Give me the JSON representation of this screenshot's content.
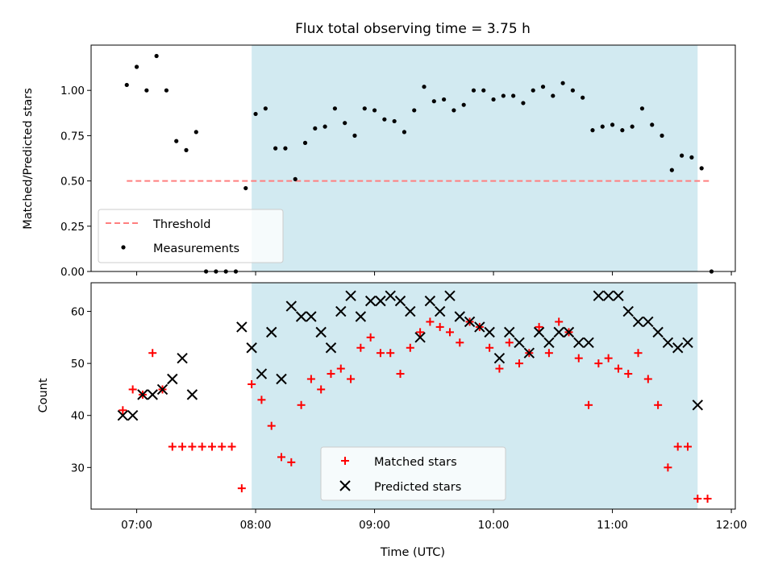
{
  "colors": {
    "shade": "#add8e6",
    "threshold": "#ff7f7f",
    "matched": "#ff0000",
    "predicted": "#000000",
    "measure": "#000000"
  },
  "chart_data": [
    {
      "type": "scatter",
      "title": "Flux total observing time = 3.75 h",
      "ylabel": "Matched/Predicted stars",
      "xlim": [
        "06:37",
        "12:02"
      ],
      "ylim": [
        0,
        1.25
      ],
      "yticks": [
        "0.00",
        "0.25",
        "0.50",
        "0.75",
        "1.00"
      ],
      "shaded_span": [
        "07:58",
        "11:43"
      ],
      "threshold": {
        "name": "Threshold",
        "value": 0.5,
        "x_range": [
          "06:55",
          "11:50"
        ]
      },
      "legend_position": "lower-left",
      "series": [
        {
          "name": "Measurements",
          "points": [
            [
              "06:55",
              1.03
            ],
            [
              "07:00",
              1.13
            ],
            [
              "07:05",
              1.0
            ],
            [
              "07:10",
              1.19
            ],
            [
              "07:15",
              1.0
            ],
            [
              "07:20",
              0.72
            ],
            [
              "07:25",
              0.67
            ],
            [
              "07:30",
              0.77
            ],
            [
              "07:35",
              0.0
            ],
            [
              "07:40",
              0.0
            ],
            [
              "07:45",
              0.0
            ],
            [
              "07:50",
              0.0
            ],
            [
              "07:55",
              0.46
            ],
            [
              "08:00",
              0.87
            ],
            [
              "08:05",
              0.9
            ],
            [
              "08:10",
              0.68
            ],
            [
              "08:15",
              0.68
            ],
            [
              "08:20",
              0.51
            ],
            [
              "08:25",
              0.71
            ],
            [
              "08:30",
              0.79
            ],
            [
              "08:35",
              0.8
            ],
            [
              "08:40",
              0.9
            ],
            [
              "08:45",
              0.82
            ],
            [
              "08:50",
              0.75
            ],
            [
              "08:55",
              0.9
            ],
            [
              "09:00",
              0.89
            ],
            [
              "09:05",
              0.84
            ],
            [
              "09:10",
              0.83
            ],
            [
              "09:15",
              0.77
            ],
            [
              "09:20",
              0.89
            ],
            [
              "09:25",
              1.02
            ],
            [
              "09:30",
              0.94
            ],
            [
              "09:35",
              0.95
            ],
            [
              "09:40",
              0.89
            ],
            [
              "09:45",
              0.92
            ],
            [
              "09:50",
              1.0
            ],
            [
              "09:55",
              1.0
            ],
            [
              "10:00",
              0.95
            ],
            [
              "10:05",
              0.97
            ],
            [
              "10:10",
              0.97
            ],
            [
              "10:15",
              0.93
            ],
            [
              "10:20",
              1.0
            ],
            [
              "10:25",
              1.02
            ],
            [
              "10:30",
              0.97
            ],
            [
              "10:35",
              1.04
            ],
            [
              "10:40",
              1.0
            ],
            [
              "10:45",
              0.96
            ],
            [
              "10:50",
              0.78
            ],
            [
              "10:55",
              0.8
            ],
            [
              "11:00",
              0.81
            ],
            [
              "11:05",
              0.78
            ],
            [
              "11:10",
              0.8
            ],
            [
              "11:15",
              0.9
            ],
            [
              "11:20",
              0.81
            ],
            [
              "11:25",
              0.75
            ],
            [
              "11:30",
              0.56
            ],
            [
              "11:35",
              0.64
            ],
            [
              "11:40",
              0.63
            ],
            [
              "11:45",
              0.57
            ],
            [
              "11:50",
              0.0
            ]
          ]
        }
      ]
    },
    {
      "type": "scatter",
      "xlabel": "Time (UTC)",
      "ylabel": "Count",
      "xlim": [
        "06:37",
        "12:02"
      ],
      "ylim": [
        22,
        65.5
      ],
      "yticks": [
        "30",
        "40",
        "50",
        "60"
      ],
      "xticks": [
        "07:00",
        "08:00",
        "09:00",
        "10:00",
        "11:00",
        "12:00"
      ],
      "shaded_span": [
        "07:58",
        "11:43"
      ],
      "legend_position": "lower-center",
      "series": [
        {
          "name": "Matched stars",
          "points": [
            [
              "06:53",
              41
            ],
            [
              "06:58",
              45
            ],
            [
              "07:03",
              44
            ],
            [
              "07:08",
              52
            ],
            [
              "07:13",
              45
            ],
            [
              "07:18",
              34
            ],
            [
              "07:23",
              34
            ],
            [
              "07:28",
              34
            ],
            [
              "07:33",
              34
            ],
            [
              "07:38",
              34
            ],
            [
              "07:43",
              34
            ],
            [
              "07:48",
              34
            ],
            [
              "07:53",
              26
            ],
            [
              "07:58",
              46
            ],
            [
              "08:03",
              43
            ],
            [
              "08:08",
              38
            ],
            [
              "08:13",
              32
            ],
            [
              "08:18",
              31
            ],
            [
              "08:23",
              42
            ],
            [
              "08:28",
              47
            ],
            [
              "08:33",
              45
            ],
            [
              "08:38",
              48
            ],
            [
              "08:43",
              49
            ],
            [
              "08:48",
              47
            ],
            [
              "08:53",
              53
            ],
            [
              "08:58",
              55
            ],
            [
              "09:03",
              52
            ],
            [
              "09:08",
              52
            ],
            [
              "09:13",
              48
            ],
            [
              "09:18",
              53
            ],
            [
              "09:23",
              56
            ],
            [
              "09:28",
              58
            ],
            [
              "09:33",
              57
            ],
            [
              "09:38",
              56
            ],
            [
              "09:43",
              54
            ],
            [
              "09:48",
              58
            ],
            [
              "09:53",
              57
            ],
            [
              "09:58",
              53
            ],
            [
              "10:03",
              49
            ],
            [
              "10:08",
              54
            ],
            [
              "10:13",
              50
            ],
            [
              "10:18",
              52
            ],
            [
              "10:23",
              57
            ],
            [
              "10:28",
              52
            ],
            [
              "10:33",
              58
            ],
            [
              "10:38",
              56
            ],
            [
              "10:43",
              51
            ],
            [
              "10:48",
              42
            ],
            [
              "10:53",
              50
            ],
            [
              "10:58",
              51
            ],
            [
              "11:03",
              49
            ],
            [
              "11:08",
              48
            ],
            [
              "11:13",
              52
            ],
            [
              "11:18",
              47
            ],
            [
              "11:23",
              42
            ],
            [
              "11:28",
              30
            ],
            [
              "11:33",
              34
            ],
            [
              "11:38",
              34
            ],
            [
              "11:43",
              24
            ],
            [
              "11:48",
              24
            ]
          ]
        },
        {
          "name": "Predicted stars",
          "points": [
            [
              "06:53",
              40
            ],
            [
              "06:58",
              40
            ],
            [
              "07:03",
              44
            ],
            [
              "07:08",
              44
            ],
            [
              "07:13",
              45
            ],
            [
              "07:18",
              47
            ],
            [
              "07:23",
              51
            ],
            [
              "07:28",
              44
            ],
            [
              "07:53",
              57
            ],
            [
              "07:58",
              53
            ],
            [
              "08:03",
              48
            ],
            [
              "08:08",
              56
            ],
            [
              "08:13",
              47
            ],
            [
              "08:18",
              61
            ],
            [
              "08:23",
              59
            ],
            [
              "08:28",
              59
            ],
            [
              "08:33",
              56
            ],
            [
              "08:38",
              53
            ],
            [
              "08:43",
              60
            ],
            [
              "08:48",
              63
            ],
            [
              "08:53",
              59
            ],
            [
              "08:58",
              62
            ],
            [
              "09:03",
              62
            ],
            [
              "09:08",
              63
            ],
            [
              "09:13",
              62
            ],
            [
              "09:18",
              60
            ],
            [
              "09:23",
              55
            ],
            [
              "09:28",
              62
            ],
            [
              "09:33",
              60
            ],
            [
              "09:38",
              63
            ],
            [
              "09:43",
              59
            ],
            [
              "09:48",
              58
            ],
            [
              "09:53",
              57
            ],
            [
              "09:58",
              56
            ],
            [
              "10:03",
              51
            ],
            [
              "10:08",
              56
            ],
            [
              "10:13",
              54
            ],
            [
              "10:18",
              52
            ],
            [
              "10:23",
              56
            ],
            [
              "10:28",
              54
            ],
            [
              "10:33",
              56
            ],
            [
              "10:38",
              56
            ],
            [
              "10:43",
              54
            ],
            [
              "10:48",
              54
            ],
            [
              "10:53",
              63
            ],
            [
              "10:58",
              63
            ],
            [
              "11:03",
              63
            ],
            [
              "11:08",
              60
            ],
            [
              "11:13",
              58
            ],
            [
              "11:18",
              58
            ],
            [
              "11:23",
              56
            ],
            [
              "11:28",
              54
            ],
            [
              "11:33",
              53
            ],
            [
              "11:38",
              54
            ],
            [
              "11:43",
              42
            ]
          ]
        }
      ]
    }
  ]
}
